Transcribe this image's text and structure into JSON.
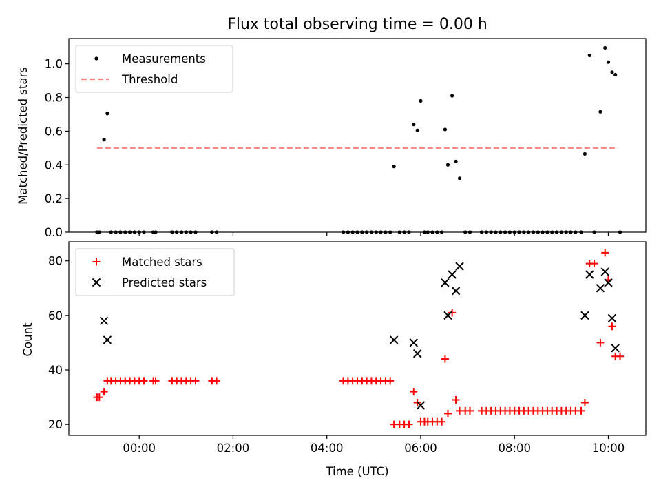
{
  "chart_data": [
    {
      "type": "scatter",
      "title": "Flux total observing time = 0.00 h",
      "xlabel": "",
      "ylabel": "Matched/Predicted stars",
      "xlim": [
        -1.5,
        10.8
      ],
      "ylim": [
        0.0,
        1.15
      ],
      "yticks": [
        0.0,
        0.2,
        0.4,
        0.6,
        0.8,
        1.0
      ],
      "ytick_labels": [
        "0.0",
        "0.2",
        "0.4",
        "0.6",
        "0.8",
        "1.0"
      ],
      "legend_position": "top-left",
      "series": [
        {
          "name": "Measurements",
          "style": "dot",
          "color": "#000000",
          "x": [
            -0.9,
            -0.85,
            -0.75,
            -0.68,
            -0.6,
            -0.5,
            -0.4,
            -0.3,
            -0.2,
            -0.1,
            0.0,
            0.1,
            0.3,
            0.35,
            0.7,
            0.8,
            0.9,
            1.0,
            1.1,
            1.2,
            1.55,
            1.65,
            4.35,
            4.45,
            4.55,
            4.65,
            4.75,
            4.85,
            4.95,
            5.05,
            5.15,
            5.25,
            5.35,
            5.43,
            5.55,
            5.65,
            5.75,
            5.85,
            5.93,
            6.0,
            6.08,
            6.15,
            6.25,
            6.35,
            6.45,
            6.52,
            6.58,
            6.67,
            6.75,
            6.83,
            6.95,
            7.05,
            7.3,
            7.4,
            7.5,
            7.6,
            7.7,
            7.8,
            7.9,
            8.0,
            8.1,
            8.2,
            8.3,
            8.4,
            8.5,
            8.6,
            8.7,
            8.8,
            8.9,
            9.0,
            9.1,
            9.2,
            9.3,
            9.42,
            9.5,
            9.6,
            9.7,
            9.83,
            9.93,
            10.0,
            10.08,
            10.15,
            10.25
          ],
          "y": [
            0.0,
            0.0,
            0.55,
            0.705,
            0.0,
            0.0,
            0.0,
            0.0,
            0.0,
            0.0,
            0.0,
            0.0,
            0.0,
            0.0,
            0.0,
            0.0,
            0.0,
            0.0,
            0.0,
            0.0,
            0.0,
            0.0,
            0.0,
            0.0,
            0.0,
            0.0,
            0.0,
            0.0,
            0.0,
            0.0,
            0.0,
            0.0,
            0.0,
            0.39,
            0.0,
            0.0,
            0.0,
            0.64,
            0.605,
            0.78,
            0.0,
            0.0,
            0.0,
            0.0,
            0.0,
            0.61,
            0.4,
            0.81,
            0.42,
            0.32,
            0.0,
            0.0,
            0.0,
            0.0,
            0.0,
            0.0,
            0.0,
            0.0,
            0.0,
            0.0,
            0.0,
            0.0,
            0.0,
            0.0,
            0.0,
            0.0,
            0.0,
            0.0,
            0.0,
            0.0,
            0.0,
            0.0,
            0.0,
            0.0,
            0.465,
            1.05,
            0.0,
            0.715,
            1.095,
            1.01,
            0.95,
            0.935,
            0.0
          ]
        },
        {
          "name": "Threshold",
          "style": "dashed-line",
          "color": "#ff7f7f",
          "x": [
            -0.9,
            10.2
          ],
          "y": [
            0.5,
            0.5
          ]
        }
      ]
    },
    {
      "type": "scatter",
      "title": "",
      "xlabel": "Time (UTC)",
      "ylabel": "Count",
      "xlim": [
        -1.5,
        10.8
      ],
      "ylim": [
        16,
        87
      ],
      "xticks": [
        0,
        2,
        4,
        6,
        8,
        10
      ],
      "xtick_labels": [
        "00:00",
        "02:00",
        "04:00",
        "06:00",
        "08:00",
        "10:00"
      ],
      "yticks": [
        20,
        40,
        60,
        80
      ],
      "ytick_labels": [
        "20",
        "40",
        "60",
        "80"
      ],
      "legend_position": "top-left",
      "series": [
        {
          "name": "Matched stars",
          "style": "plus",
          "color": "#ff0000",
          "x": [
            -0.9,
            -0.85,
            -0.75,
            -0.68,
            -0.6,
            -0.5,
            -0.4,
            -0.3,
            -0.2,
            -0.1,
            0.0,
            0.1,
            0.3,
            0.35,
            0.7,
            0.8,
            0.9,
            1.0,
            1.1,
            1.2,
            1.55,
            1.65,
            4.35,
            4.45,
            4.55,
            4.65,
            4.75,
            4.85,
            4.95,
            5.05,
            5.15,
            5.25,
            5.35,
            5.43,
            5.55,
            5.65,
            5.75,
            5.85,
            5.93,
            6.0,
            6.08,
            6.15,
            6.25,
            6.35,
            6.45,
            6.52,
            6.58,
            6.67,
            6.75,
            6.83,
            6.95,
            7.05,
            7.3,
            7.4,
            7.5,
            7.6,
            7.7,
            7.8,
            7.9,
            8.0,
            8.1,
            8.2,
            8.3,
            8.4,
            8.5,
            8.6,
            8.7,
            8.8,
            8.9,
            9.0,
            9.1,
            9.2,
            9.3,
            9.42,
            9.5,
            9.6,
            9.7,
            9.83,
            9.93,
            10.0,
            10.08,
            10.15,
            10.25
          ],
          "y": [
            30,
            30,
            32,
            36,
            36,
            36,
            36,
            36,
            36,
            36,
            36,
            36,
            36,
            36,
            36,
            36,
            36,
            36,
            36,
            36,
            36,
            36,
            36,
            36,
            36,
            36,
            36,
            36,
            36,
            36,
            36,
            36,
            36,
            20,
            20,
            20,
            20,
            32,
            28,
            21,
            21,
            21,
            21,
            21,
            21,
            44,
            24,
            61,
            29,
            25,
            25,
            25,
            25,
            25,
            25,
            25,
            25,
            25,
            25,
            25,
            25,
            25,
            25,
            25,
            25,
            25,
            25,
            25,
            25,
            25,
            25,
            25,
            25,
            25,
            28,
            79,
            79,
            50,
            83,
            73,
            56,
            45,
            45
          ]
        },
        {
          "name": "Predicted stars",
          "style": "x",
          "color": "#000000",
          "x": [
            -0.75,
            -0.68,
            5.43,
            5.85,
            5.93,
            6.0,
            6.52,
            6.58,
            6.67,
            6.75,
            6.83,
            9.5,
            9.6,
            9.83,
            9.93,
            10.0,
            10.08,
            10.15
          ],
          "y": [
            58,
            51,
            51,
            50,
            46,
            27,
            72,
            60,
            75,
            69,
            78,
            60,
            75,
            70,
            76,
            72,
            59,
            48
          ]
        }
      ]
    }
  ]
}
